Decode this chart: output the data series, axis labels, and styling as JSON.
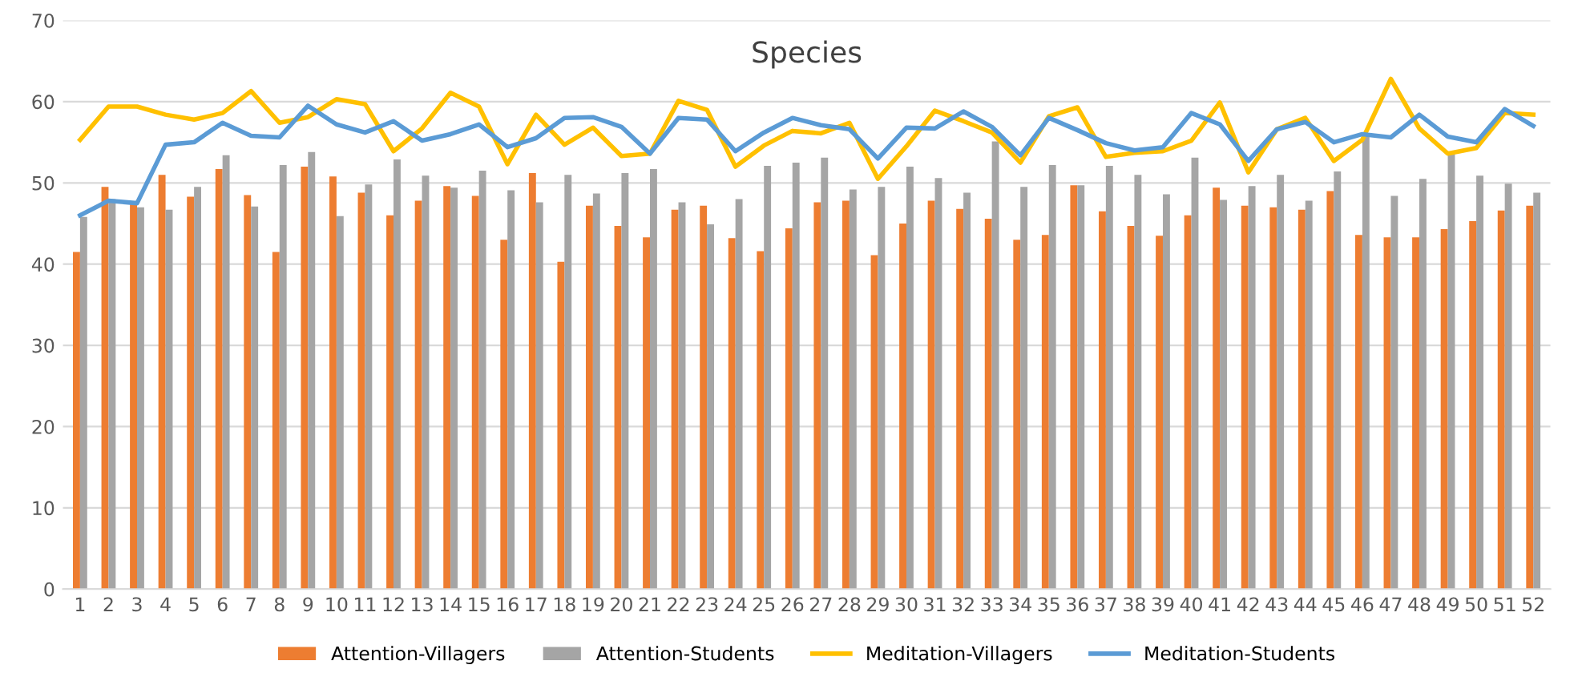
{
  "chart_data": {
    "type": "bar",
    "title": "Species",
    "categories": [
      "1",
      "2",
      "3",
      "4",
      "5",
      "6",
      "7",
      "8",
      "9",
      "10",
      "11",
      "12",
      "13",
      "14",
      "15",
      "16",
      "17",
      "18",
      "19",
      "20",
      "21",
      "22",
      "23",
      "24",
      "25",
      "26",
      "27",
      "28",
      "29",
      "30",
      "31",
      "32",
      "33",
      "34",
      "35",
      "36",
      "37",
      "38",
      "39",
      "40",
      "41",
      "42",
      "43",
      "44",
      "45",
      "46",
      "47",
      "48",
      "49",
      "50",
      "51",
      "52"
    ],
    "series": [
      {
        "name": "Attention-Villagers",
        "color": "#ed7d31",
        "values": [
          41.5,
          49.5,
          47.5,
          51,
          48.3,
          51.7,
          48.5,
          41.5,
          52,
          50.8,
          48.8,
          46,
          47.8,
          49.6,
          48.4,
          43,
          51.2,
          40.3,
          47.2,
          44.7,
          43.3,
          46.7,
          47.2,
          43.2,
          41.6,
          44.4,
          47.6,
          47.8,
          41.1,
          45,
          47.8,
          46.8,
          45.6,
          43,
          43.6,
          49.7,
          46.5,
          44.7,
          43.5,
          46,
          49.4,
          47.2,
          47,
          46.7,
          49,
          43.6,
          43.3,
          43.3,
          44.3,
          45.3,
          46.6,
          47.2
        ]
      },
      {
        "name": "Attention-Students",
        "color": "#a5a5a5",
        "values": [
          45.8,
          48,
          47,
          46.7,
          49.5,
          53.4,
          47.1,
          52.2,
          53.8,
          45.9,
          49.8,
          52.9,
          50.9,
          49.4,
          51.5,
          49.1,
          47.6,
          51,
          48.7,
          51.2,
          51.7,
          47.6,
          44.9,
          48,
          52.1,
          52.5,
          53.1,
          49.2,
          49.5,
          52,
          50.6,
          48.8,
          55.1,
          49.5,
          52.2,
          49.7,
          52.1,
          51,
          48.6,
          53.1,
          47.9,
          49.6,
          51,
          47.8,
          51.4,
          55.8,
          48.4,
          50.5,
          53.5,
          50.9,
          49.9,
          48.8
        ]
      },
      {
        "name": "Meditation-Villagers",
        "type": "line",
        "color": "#ffc000",
        "values": [
          55.3,
          59.4,
          59.4,
          58.4,
          57.8,
          58.6,
          61.3,
          57.4,
          58.1,
          60.3,
          59.7,
          53.9,
          56.7,
          61.1,
          59.4,
          52.3,
          58.4,
          54.7,
          56.8,
          53.3,
          53.6,
          60.1,
          59,
          52,
          54.6,
          56.4,
          56.1,
          57.4,
          50.5,
          54.5,
          58.9,
          57.6,
          56.2,
          52.5,
          58.2,
          59.3,
          53.2,
          53.7,
          53.9,
          55.2,
          59.9,
          51.3,
          56.6,
          58,
          52.7,
          55.3,
          62.8,
          56.7,
          53.6,
          54.3,
          58.6,
          58.4
        ]
      },
      {
        "name": "Meditation-Students",
        "type": "line",
        "color": "#5b9bd5",
        "values": [
          46,
          47.8,
          47.5,
          54.7,
          55,
          57.4,
          55.8,
          55.6,
          59.5,
          57.2,
          56.2,
          57.6,
          55.2,
          56,
          57.2,
          54.4,
          55.5,
          58,
          58.1,
          56.9,
          53.6,
          58,
          57.8,
          53.9,
          56.2,
          58,
          57.1,
          56.6,
          53,
          56.8,
          56.7,
          58.8,
          56.9,
          53.4,
          58,
          56.5,
          54.9,
          54,
          54.4,
          58.6,
          57.2,
          52.7,
          56.6,
          57.5,
          55,
          56,
          55.6,
          58.4,
          55.7,
          55,
          59.1,
          57
        ]
      }
    ],
    "ylim": [
      0,
      70
    ],
    "yticks": [
      0,
      10,
      20,
      30,
      40,
      50,
      60,
      70
    ],
    "grid": "y",
    "legend": "bottom"
  }
}
